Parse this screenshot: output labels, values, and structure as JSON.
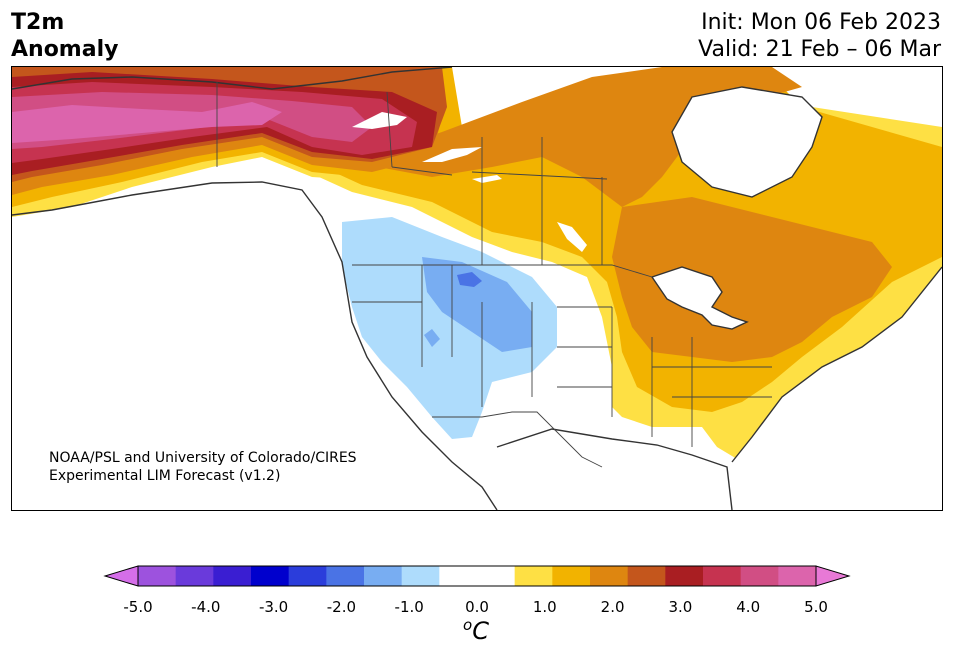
{
  "title": {
    "line1": "T2m",
    "line2": "Anomaly"
  },
  "dates": {
    "init": "Init: Mon 06 Feb 2023",
    "valid": "Valid: 21 Feb – 06 Mar"
  },
  "credit": {
    "line1": "NOAA/PSL and University of Colorado/CIRES",
    "line2": "Experimental LIM Forecast (v1.2)"
  },
  "colorbar": {
    "colors": [
      "#d56ee9",
      "#9d52de",
      "#6a3adb",
      "#3a1ed2",
      "#0000cd",
      "#2b3ddb",
      "#4a73e5",
      "#78adf2",
      "#aedcfc",
      "#ffffff",
      "#ffffff",
      "#fee044",
      "#f2b300",
      "#de8610",
      "#c4561c",
      "#a91e22",
      "#c63350",
      "#d14e84",
      "#dc64ac",
      "#e879d6"
    ],
    "ticks": [
      "-5.0",
      "-4.0",
      "-3.0",
      "-2.0",
      "-1.0",
      "0.0",
      "1.0",
      "2.0",
      "3.0",
      "4.0",
      "5.0"
    ],
    "unit_base": "C",
    "unit_sup": "o"
  }
}
